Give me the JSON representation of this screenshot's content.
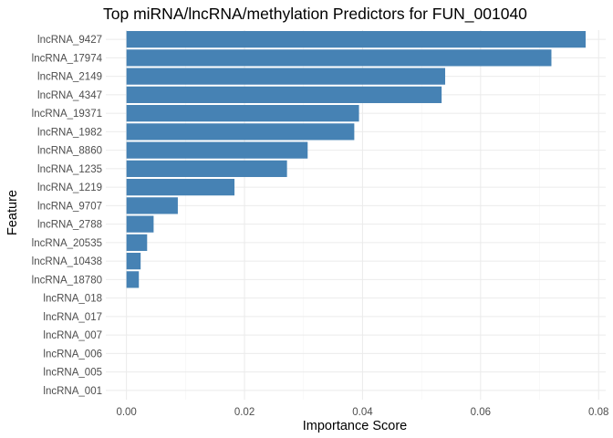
{
  "chart_data": {
    "type": "bar",
    "orientation": "horizontal",
    "title": "Top miRNA/lncRNA/methylation Predictors for FUN_001040",
    "xlabel": "Importance Score",
    "ylabel": "Feature",
    "categories": [
      "lncRNA_9427",
      "lncRNA_17974",
      "lncRNA_2149",
      "lncRNA_4347",
      "lncRNA_19371",
      "lncRNA_1982",
      "lncRNA_8860",
      "lncRNA_1235",
      "lncRNA_1219",
      "lncRNA_9707",
      "lncRNA_2788",
      "lncRNA_20535",
      "lncRNA_10438",
      "lncRNA_18780",
      "lncRNA_018",
      "lncRNA_017",
      "lncRNA_007",
      "lncRNA_006",
      "lncRNA_005",
      "lncRNA_001"
    ],
    "values": [
      0.0778,
      0.072,
      0.054,
      0.0534,
      0.0394,
      0.0386,
      0.0307,
      0.0272,
      0.0183,
      0.0087,
      0.0046,
      0.0035,
      0.0024,
      0.0021,
      0,
      0,
      0,
      0,
      0,
      0
    ],
    "xlim": [
      -0.0035,
      0.0812
    ],
    "xticks": [
      0.0,
      0.02,
      0.04,
      0.06,
      0.08
    ],
    "xtick_labels": [
      "0.00",
      "0.02",
      "0.04",
      "0.06",
      "0.08"
    ],
    "bar_color": "#4682b4",
    "grid": true,
    "legend": "none"
  }
}
